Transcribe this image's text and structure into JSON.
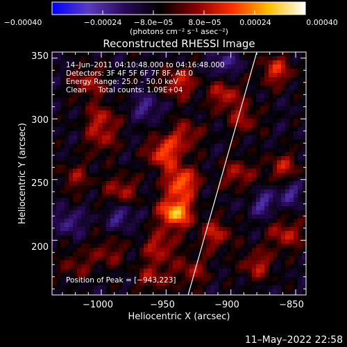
{
  "chart_data": {
    "type": "heatmap",
    "title": "Reconstructed RHESSI Image",
    "xlabel": "Heliocentric X (arcsec)",
    "ylabel": "Heliocentric Y (arcsec)",
    "xlim": [
      -1038,
      -842
    ],
    "ylim": [
      155,
      355
    ],
    "x_ticks": [
      -1000,
      -950,
      -900,
      -850
    ],
    "x_tick_labels": [
      "−1000",
      "−950",
      "−900",
      "−850"
    ],
    "y_ticks": [
      200,
      250,
      300,
      350
    ],
    "y_tick_labels": [
      "200",
      "250",
      "300",
      "350"
    ],
    "colorbar": {
      "range": [
        -0.0004,
        0.0004
      ],
      "ticks": [
        -0.0004,
        -0.00024,
        -8e-05,
        8e-05,
        0.00024,
        0.0004
      ],
      "tick_labels": [
        "−0.00040",
        "−0.00024",
        "−8.0e−05",
        "8.0e−05",
        "0.00024",
        "0.00040"
      ],
      "unit_label": "(photons cm⁻² s⁻¹ asec⁻²)",
      "colors": [
        "#0000ff",
        "#5a3cc0",
        "#2a0a5a",
        "#000000",
        "#8a0000",
        "#ff3000",
        "#ffc000",
        "#ffffff"
      ]
    },
    "annotations": {
      "time_range": "14–Jun–2011 04:10:48.000 to 04:16:48.000",
      "detectors": "Detectors: 3F 4F 5F 6F 7F 8F, Att 0",
      "energy": "Energy Range: 25.0 – 50.0 keV",
      "clean": "Clean     Total counts: 1.09E+04",
      "peak": "Position of Peak = [−943,223]"
    },
    "peak_position": [
      -943,
      223
    ],
    "limb_line": [
      [
        -933,
        155
      ],
      [
        -880,
        355
      ]
    ],
    "hotspots": [
      {
        "x": -943,
        "y": 223,
        "strength": 1.0
      },
      {
        "x": -938,
        "y": 248,
        "strength": 0.8
      },
      {
        "x": -952,
        "y": 272,
        "strength": 0.7
      },
      {
        "x": -935,
        "y": 287,
        "strength": 0.45
      },
      {
        "x": -940,
        "y": 330,
        "strength": 0.55
      },
      {
        "x": -905,
        "y": 320,
        "strength": 0.5
      },
      {
        "x": -865,
        "y": 340,
        "strength": 0.55
      },
      {
        "x": -890,
        "y": 300,
        "strength": 0.4
      },
      {
        "x": -1010,
        "y": 330,
        "strength": 0.45
      },
      {
        "x": -1000,
        "y": 300,
        "strength": 0.45
      },
      {
        "x": -1020,
        "y": 252,
        "strength": 0.35
      },
      {
        "x": -985,
        "y": 242,
        "strength": 0.45
      },
      {
        "x": -1000,
        "y": 282,
        "strength": 0.35
      },
      {
        "x": -912,
        "y": 205,
        "strength": 0.5
      },
      {
        "x": -895,
        "y": 255,
        "strength": 0.45
      },
      {
        "x": -860,
        "y": 260,
        "strength": 0.45
      },
      {
        "x": -858,
        "y": 205,
        "strength": 0.5
      },
      {
        "x": -880,
        "y": 180,
        "strength": 0.45
      },
      {
        "x": -955,
        "y": 195,
        "strength": 0.5
      },
      {
        "x": -995,
        "y": 190,
        "strength": 0.35
      },
      {
        "x": -1020,
        "y": 180,
        "strength": 0.3
      },
      {
        "x": -960,
        "y": 170,
        "strength": 0.4
      },
      {
        "x": -930,
        "y": 175,
        "strength": 0.4
      }
    ],
    "coldspots": [
      {
        "x": -1025,
        "y": 215
      },
      {
        "x": -985,
        "y": 220
      },
      {
        "x": -965,
        "y": 310
      },
      {
        "x": -875,
        "y": 230
      },
      {
        "x": -855,
        "y": 240
      },
      {
        "x": -905,
        "y": 345
      }
    ]
  },
  "footer": {
    "timestamp": "11–May–2022 22:58"
  }
}
